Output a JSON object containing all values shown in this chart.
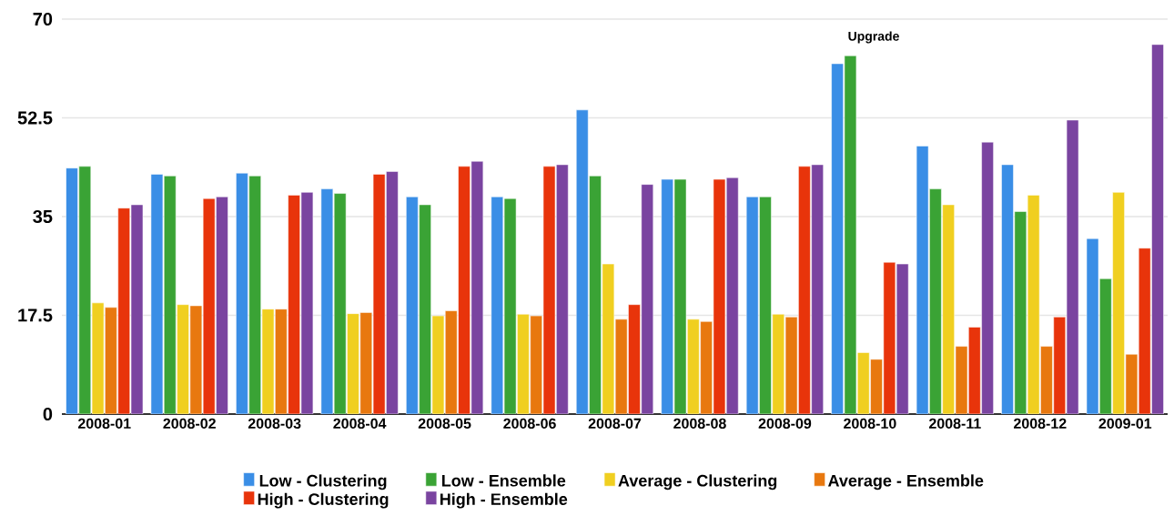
{
  "chart_data": {
    "type": "bar",
    "categories": [
      "2008-01",
      "2008-02",
      "2008-03",
      "2008-04",
      "2008-05",
      "2008-06",
      "2008-07",
      "2008-08",
      "2008-09",
      "2008-10",
      "2008-11",
      "2008-12",
      "2009-01"
    ],
    "series": [
      {
        "name": "Low - Clustering",
        "color": "#3a8ee6",
        "values": [
          43.6,
          42.5,
          42.7,
          39.9,
          38.5,
          38.5,
          53.9,
          41.6,
          38.5,
          62.1,
          47.5,
          44.2,
          31.1
        ]
      },
      {
        "name": "Low - Ensemble",
        "color": "#3aa335",
        "values": [
          43.9,
          42.2,
          42.2,
          39.1,
          37.1,
          38.2,
          42.2,
          41.6,
          38.5,
          63.5,
          39.9,
          35.9,
          24.0
        ]
      },
      {
        "name": "Average - Clustering",
        "color": "#f0cf20",
        "values": [
          19.7,
          19.4,
          18.6,
          17.8,
          17.4,
          17.7,
          26.6,
          16.8,
          17.7,
          10.9,
          37.1,
          38.8,
          39.3
        ]
      },
      {
        "name": "Average - Ensemble",
        "color": "#e8780f",
        "values": [
          18.9,
          19.2,
          18.6,
          18.0,
          18.3,
          17.4,
          16.8,
          16.4,
          17.2,
          9.7,
          12.0,
          12.0,
          10.6
        ]
      },
      {
        "name": "High - Clustering",
        "color": "#e8340b",
        "values": [
          36.5,
          38.2,
          38.8,
          42.5,
          43.9,
          43.9,
          19.4,
          41.6,
          43.9,
          26.9,
          15.4,
          17.2,
          29.4
        ]
      },
      {
        "name": "High - Ensemble",
        "color": "#7a44a0",
        "values": [
          37.1,
          38.5,
          39.3,
          43.0,
          44.8,
          44.2,
          40.7,
          41.9,
          44.2,
          26.6,
          48.2,
          52.1,
          65.5
        ]
      }
    ],
    "ylim": [
      0,
      70
    ],
    "yticks": [
      0,
      17.5,
      35,
      52.5,
      70
    ],
    "grid": "y",
    "legend": "bottom",
    "annotations": [
      "Upgrade"
    ]
  }
}
